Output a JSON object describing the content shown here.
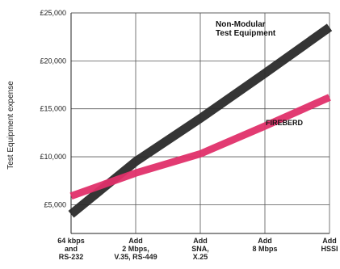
{
  "chart_data": {
    "type": "line",
    "ylabel": "Test Equipment expense",
    "y_tick_labels": [
      "£25,000",
      "£20,000",
      "£15,000",
      "£10,000",
      "£5,000"
    ],
    "y_ticks": [
      25000,
      20000,
      15000,
      10000,
      5000
    ],
    "ylim": [
      2000,
      25000
    ],
    "categories": [
      [
        "64 kbps",
        "and",
        "RS-232"
      ],
      [
        "Add",
        "2 Mbps,",
        "V.35, RS-449"
      ],
      [
        "Add",
        "SNA,",
        "X.25"
      ],
      [
        "Add",
        "8 Mbps"
      ],
      [
        "Add",
        "HSSI"
      ]
    ],
    "grid": true,
    "series": [
      {
        "name": "Non-Modular Test Equipment",
        "label_lines": [
          "Non-Modular",
          "Test Equipment"
        ],
        "color": "#2a2a2a",
        "values": [
          4000,
          9500,
          14000,
          18700,
          23500
        ]
      },
      {
        "name": "FIREBERD",
        "label_lines": [
          "FIREBERD"
        ],
        "color": "#e0306a",
        "values": [
          5900,
          8300,
          10300,
          13200,
          16200
        ]
      }
    ]
  }
}
